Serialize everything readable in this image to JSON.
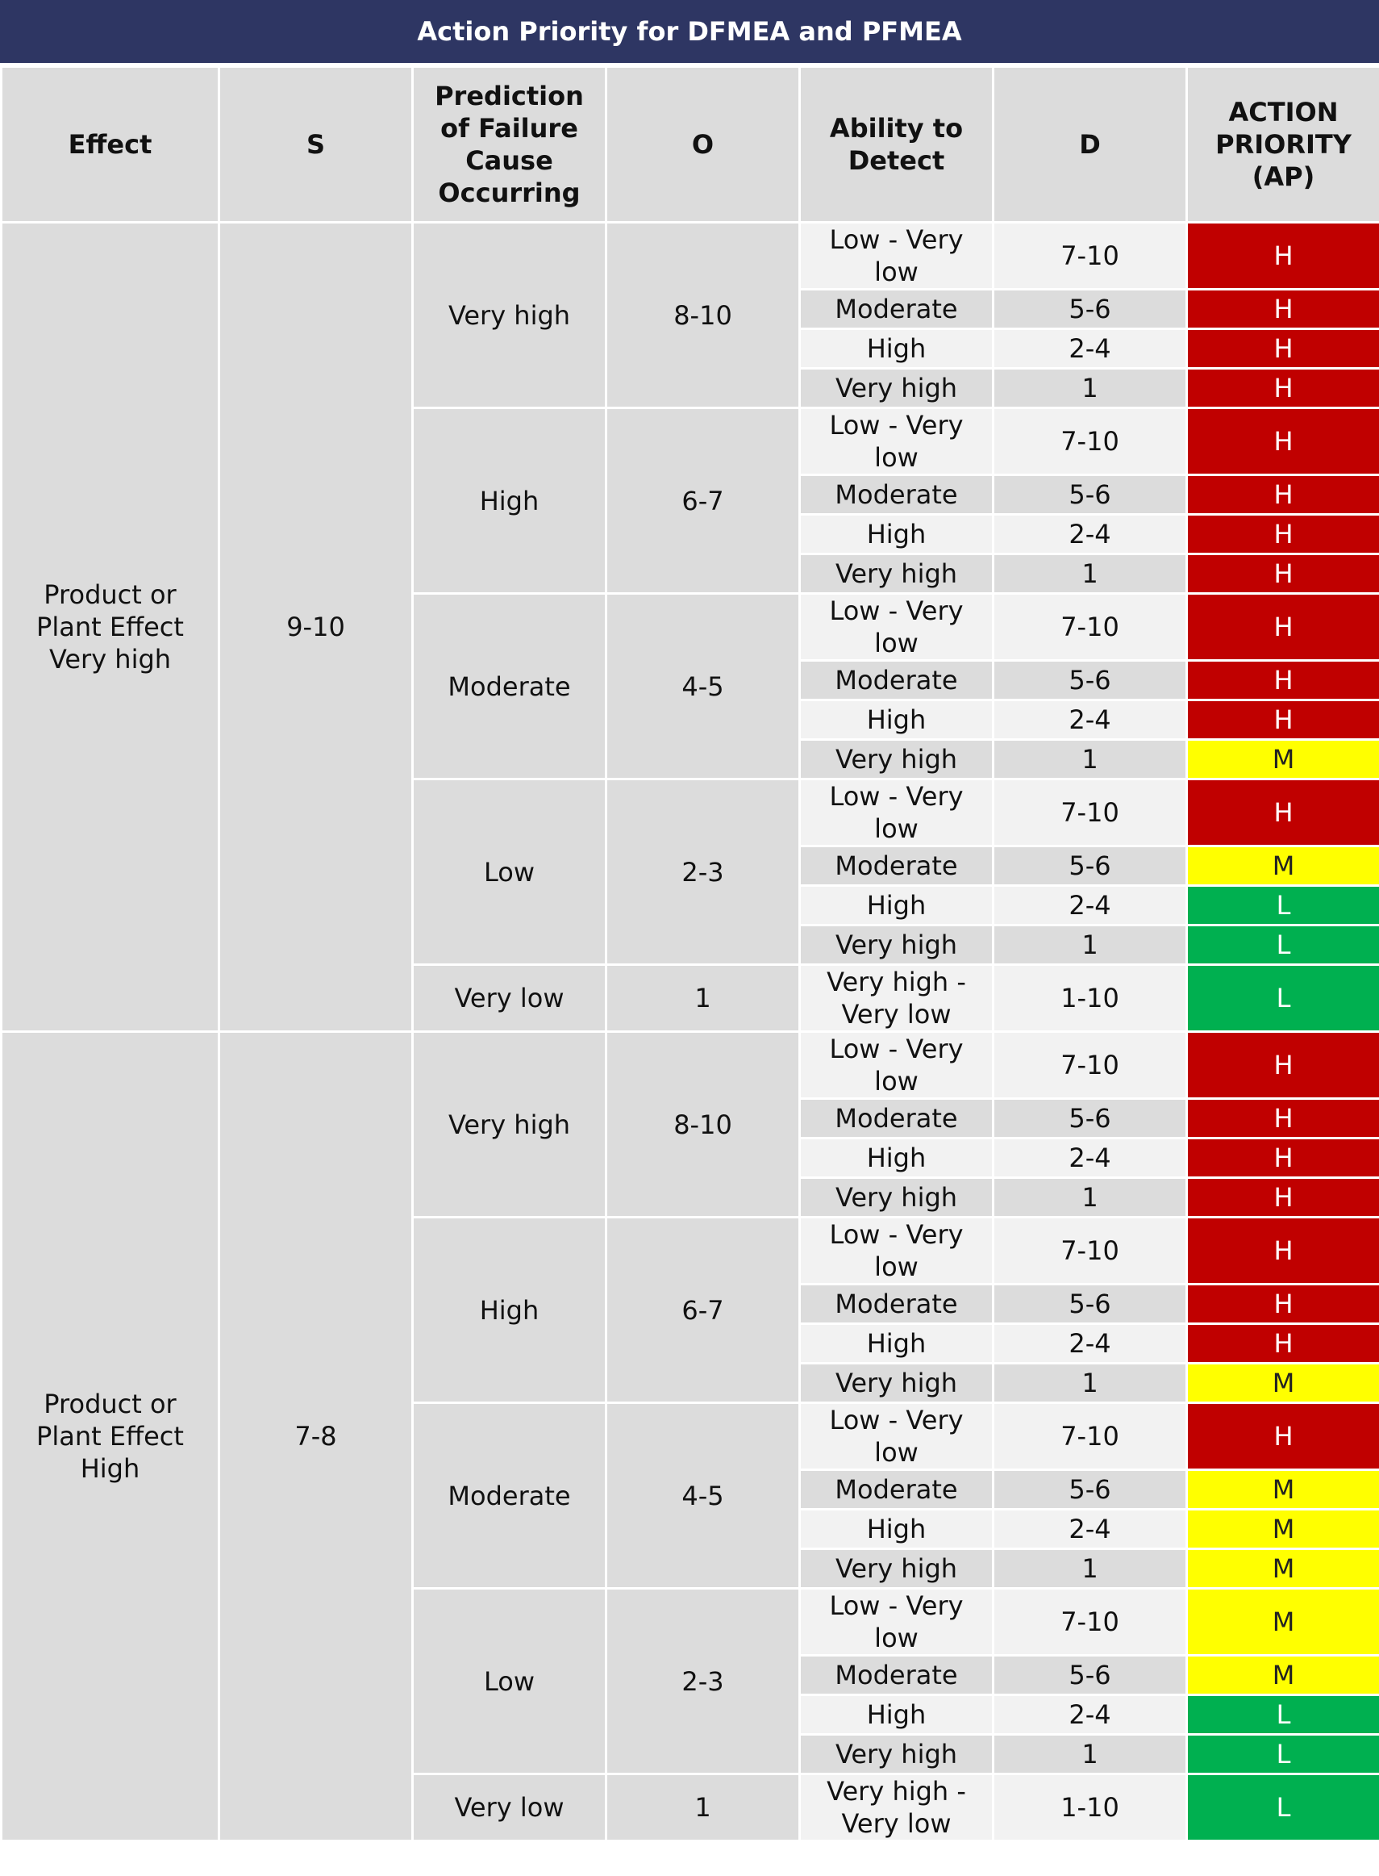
{
  "title": "Action Priority for DFMEA and PFMEA",
  "header": [
    "Effect",
    "S",
    "Prediction of Failure Cause Occurring",
    "O",
    "Ability to Detect",
    "D",
    "ACTION PRIORITY (AP)"
  ],
  "ap_styles": {
    "H": {
      "fill": "#c00000",
      "text": "#ffffff"
    },
    "M": {
      "fill": "#ffff00",
      "text": "#222222"
    },
    "L": {
      "fill": "#00b050",
      "text": "#ffffff"
    }
  },
  "groups": [
    {
      "effect": "Product or Plant Effect Very high",
      "s": "9-10",
      "occurrences": [
        {
          "prediction": "Very high",
          "o": "8-10",
          "rows": [
            [
              "Low - Very low",
              "7-10",
              "H"
            ],
            [
              "Moderate",
              "5-6",
              "H"
            ],
            [
              "High",
              "2-4",
              "H"
            ],
            [
              "Very high",
              "1",
              "H"
            ]
          ]
        },
        {
          "prediction": "High",
          "o": "6-7",
          "rows": [
            [
              "Low - Very low",
              "7-10",
              "H"
            ],
            [
              "Moderate",
              "5-6",
              "H"
            ],
            [
              "High",
              "2-4",
              "H"
            ],
            [
              "Very high",
              "1",
              "H"
            ]
          ]
        },
        {
          "prediction": "Moderate",
          "o": "4-5",
          "rows": [
            [
              "Low - Very low",
              "7-10",
              "H"
            ],
            [
              "Moderate",
              "5-6",
              "H"
            ],
            [
              "High",
              "2-4",
              "H"
            ],
            [
              "Very high",
              "1",
              "M"
            ]
          ]
        },
        {
          "prediction": "Low",
          "o": "2-3",
          "rows": [
            [
              "Low - Very low",
              "7-10",
              "H"
            ],
            [
              "Moderate",
              "5-6",
              "M"
            ],
            [
              "High",
              "2-4",
              "L"
            ],
            [
              "Very high",
              "1",
              "L"
            ]
          ]
        },
        {
          "prediction": "Very low",
          "o": "1",
          "rows": [
            [
              "Very high - Very low",
              "1-10",
              "L"
            ]
          ]
        }
      ]
    },
    {
      "effect": "Product or Plant Effect High",
      "s": "7-8",
      "occurrences": [
        {
          "prediction": "Very high",
          "o": "8-10",
          "rows": [
            [
              "Low - Very low",
              "7-10",
              "H"
            ],
            [
              "Moderate",
              "5-6",
              "H"
            ],
            [
              "High",
              "2-4",
              "H"
            ],
            [
              "Very high",
              "1",
              "H"
            ]
          ]
        },
        {
          "prediction": "High",
          "o": "6-7",
          "rows": [
            [
              "Low - Very low",
              "7-10",
              "H"
            ],
            [
              "Moderate",
              "5-6",
              "H"
            ],
            [
              "High",
              "2-4",
              "H"
            ],
            [
              "Very high",
              "1",
              "M"
            ]
          ]
        },
        {
          "prediction": "Moderate",
          "o": "4-5",
          "rows": [
            [
              "Low - Very low",
              "7-10",
              "H"
            ],
            [
              "Moderate",
              "5-6",
              "M"
            ],
            [
              "High",
              "2-4",
              "M"
            ],
            [
              "Very high",
              "1",
              "M"
            ]
          ]
        },
        {
          "prediction": "Low",
          "o": "2-3",
          "rows": [
            [
              "Low - Very low",
              "7-10",
              "M"
            ],
            [
              "Moderate",
              "5-6",
              "M"
            ],
            [
              "High",
              "2-4",
              "L"
            ],
            [
              "Very high",
              "1",
              "L"
            ]
          ]
        },
        {
          "prediction": "Very low",
          "o": "1",
          "rows": [
            [
              "Very high - Very low",
              "1-10",
              "L"
            ]
          ]
        }
      ]
    }
  ]
}
